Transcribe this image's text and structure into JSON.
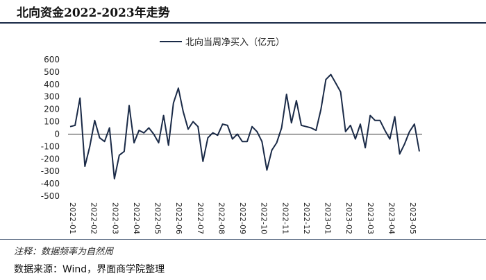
{
  "header": {
    "title": "北向资金2022-2023年走势"
  },
  "footer": {
    "note": "注释：数据频率为自然周",
    "source": "数据来源：Wind，界面商学院整理"
  },
  "chart_data": {
    "type": "line",
    "title": "北向资金2022-2023年走势",
    "legend_position": "top-center",
    "grid": false,
    "series": [
      {
        "name": "北向当周净买入（亿元）",
        "color": "#1a2a47",
        "values": [
          60,
          70,
          290,
          -260,
          -100,
          110,
          -30,
          -60,
          50,
          -360,
          -170,
          -140,
          230,
          -70,
          30,
          10,
          50,
          0,
          -70,
          150,
          -90,
          250,
          370,
          180,
          40,
          100,
          60,
          -220,
          -30,
          10,
          -10,
          80,
          70,
          -40,
          0,
          -60,
          -60,
          60,
          20,
          -60,
          -290,
          -130,
          -70,
          50,
          320,
          90,
          270,
          70,
          60,
          50,
          30,
          200,
          440,
          480,
          410,
          340,
          20,
          70,
          -40,
          80,
          -110,
          150,
          110,
          110,
          30,
          -40,
          140,
          -160,
          -80,
          20,
          80,
          -140
        ]
      }
    ],
    "y_axis": {
      "ylim": [
        -500,
        600
      ],
      "ticks": [
        600,
        500,
        400,
        300,
        200,
        100,
        0,
        -100,
        -200,
        -300,
        -400,
        -500
      ]
    },
    "x_axis": {
      "tick_labels": [
        "2022-01",
        "2022-02",
        "2022-03",
        "2022-04",
        "2022-05",
        "2022-06",
        "2022-07",
        "2022-08",
        "2022-09",
        "2022-10",
        "2022-11",
        "2022-12",
        "2023-01",
        "2023-02",
        "2023-03",
        "2023-04",
        "2023-05"
      ]
    }
  }
}
